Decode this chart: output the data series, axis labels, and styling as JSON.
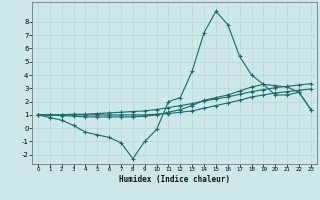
{
  "xlabel": "Humidex (Indice chaleur)",
  "background_color": "#cce8e8",
  "grid_color": "#c0d8d8",
  "line_color": "#1a6b6b",
  "xlim": [
    -0.5,
    23.5
  ],
  "ylim": [
    -2.7,
    9.5
  ],
  "xticks": [
    0,
    1,
    2,
    3,
    4,
    5,
    6,
    7,
    8,
    9,
    10,
    11,
    12,
    13,
    14,
    15,
    16,
    17,
    18,
    19,
    20,
    21,
    22,
    23
  ],
  "yticks": [
    -2,
    -1,
    0,
    1,
    2,
    3,
    4,
    5,
    6,
    7,
    8
  ],
  "series1_x": [
    0,
    1,
    2,
    3,
    4,
    5,
    6,
    7,
    8,
    9,
    10,
    11,
    12,
    13,
    14,
    15,
    16,
    17,
    18,
    19,
    20,
    21,
    22,
    23
  ],
  "series1_y": [
    1.0,
    0.8,
    0.6,
    0.2,
    -0.3,
    -0.5,
    -0.7,
    -1.1,
    -2.3,
    -1.0,
    -0.1,
    2.0,
    2.3,
    4.3,
    7.2,
    8.8,
    7.8,
    5.4,
    4.0,
    3.3,
    2.5,
    2.5,
    2.7,
    1.4
  ],
  "series2_x": [
    0,
    1,
    2,
    3,
    4,
    5,
    6,
    7,
    8,
    9,
    10,
    11,
    12,
    13,
    14,
    15,
    16,
    17,
    18,
    19,
    20,
    21,
    22,
    23
  ],
  "series2_y": [
    1.0,
    1.0,
    0.95,
    0.9,
    0.85,
    0.85,
    0.85,
    0.85,
    0.85,
    0.9,
    1.0,
    1.2,
    1.4,
    1.7,
    2.1,
    2.3,
    2.5,
    2.8,
    3.1,
    3.3,
    3.2,
    3.1,
    2.7,
    1.4
  ],
  "series3_x": [
    0,
    1,
    2,
    3,
    4,
    5,
    6,
    7,
    8,
    9,
    10,
    11,
    12,
    13,
    14,
    15,
    16,
    17,
    18,
    19,
    20,
    21,
    22,
    23
  ],
  "series3_y": [
    1.0,
    1.0,
    1.0,
    1.05,
    1.05,
    1.1,
    1.15,
    1.2,
    1.25,
    1.3,
    1.4,
    1.55,
    1.7,
    1.85,
    2.05,
    2.2,
    2.35,
    2.55,
    2.75,
    2.9,
    3.05,
    3.15,
    3.25,
    3.35
  ],
  "series4_x": [
    0,
    1,
    2,
    3,
    4,
    5,
    6,
    7,
    8,
    9,
    10,
    11,
    12,
    13,
    14,
    15,
    16,
    17,
    18,
    19,
    20,
    21,
    22,
    23
  ],
  "series4_y": [
    1.0,
    1.0,
    1.0,
    1.0,
    1.0,
    1.0,
    1.0,
    1.0,
    1.0,
    1.0,
    1.05,
    1.1,
    1.2,
    1.3,
    1.5,
    1.7,
    1.9,
    2.1,
    2.35,
    2.5,
    2.65,
    2.75,
    2.85,
    2.95
  ]
}
